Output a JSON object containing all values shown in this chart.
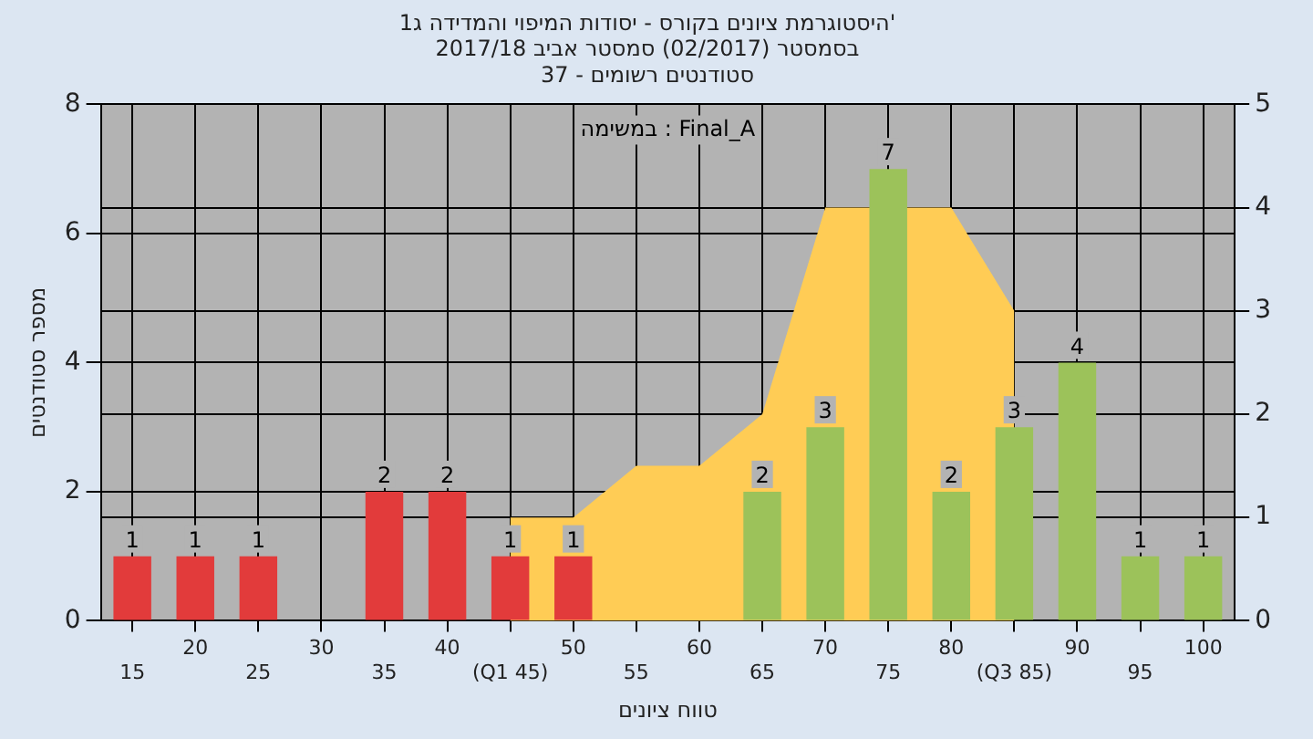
{
  "chart_data": {
    "type": "bar",
    "title": "היסטוגרמת ציונים בקורס - יסודות המיפוי והמדידה ג1'",
    "subtitle": [
      "בסמסטר (02/2017) סמסטר אביב 2017/18",
      "סטודנטים רשומים - 37"
    ],
    "xlabel": "טווח ציונים",
    "ylabel": "מספר סטודנטים",
    "annotations": [
      "במשימה : Final_A"
    ],
    "categories": [
      "15",
      "20",
      "25",
      "30",
      "35",
      "40",
      "(Q1 45)",
      "50",
      "55",
      "60",
      "65",
      "70",
      "75",
      "80",
      "(Q3 85)",
      "90",
      "95",
      "100"
    ],
    "series": [
      {
        "type": "area",
        "axis": "y2",
        "color": "#ffcc55",
        "values": [
          null,
          null,
          null,
          null,
          null,
          null,
          1,
          1,
          1.5,
          1.5,
          2,
          4,
          null,
          4,
          3,
          null,
          null,
          null
        ]
      },
      {
        "colors": [
          "#e23b3b",
          "#e23b3b",
          "#e23b3b",
          "#e23b3b",
          "#e23b3b",
          "#e23b3b",
          "#e23b3b",
          "#e23b3b",
          "#e23b3b",
          "#e23b3b",
          "#9cc25a",
          "#9cc25a",
          "#9cc25a",
          "#9cc25a",
          "#9cc25a",
          "#9cc25a",
          "#9cc25a",
          "#9cc25a"
        ],
        "values": [
          1,
          1,
          1,
          null,
          2,
          2,
          1,
          1,
          null,
          null,
          2,
          3,
          7,
          2,
          3,
          4,
          1,
          1
        ],
        "value_labels": [
          "1",
          "1",
          "1",
          null,
          "2",
          "2",
          "1",
          "1",
          null,
          null,
          "2",
          "3",
          "7",
          "2",
          "3",
          "4",
          "1",
          "1"
        ]
      }
    ],
    "ylim": [
      0,
      8
    ],
    "yticks": [
      0,
      2,
      4,
      6,
      8
    ],
    "y2lim": [
      0,
      5
    ],
    "y2ticks": [
      0,
      1,
      2,
      3,
      4,
      5
    ],
    "grid": true,
    "legend": false
  }
}
